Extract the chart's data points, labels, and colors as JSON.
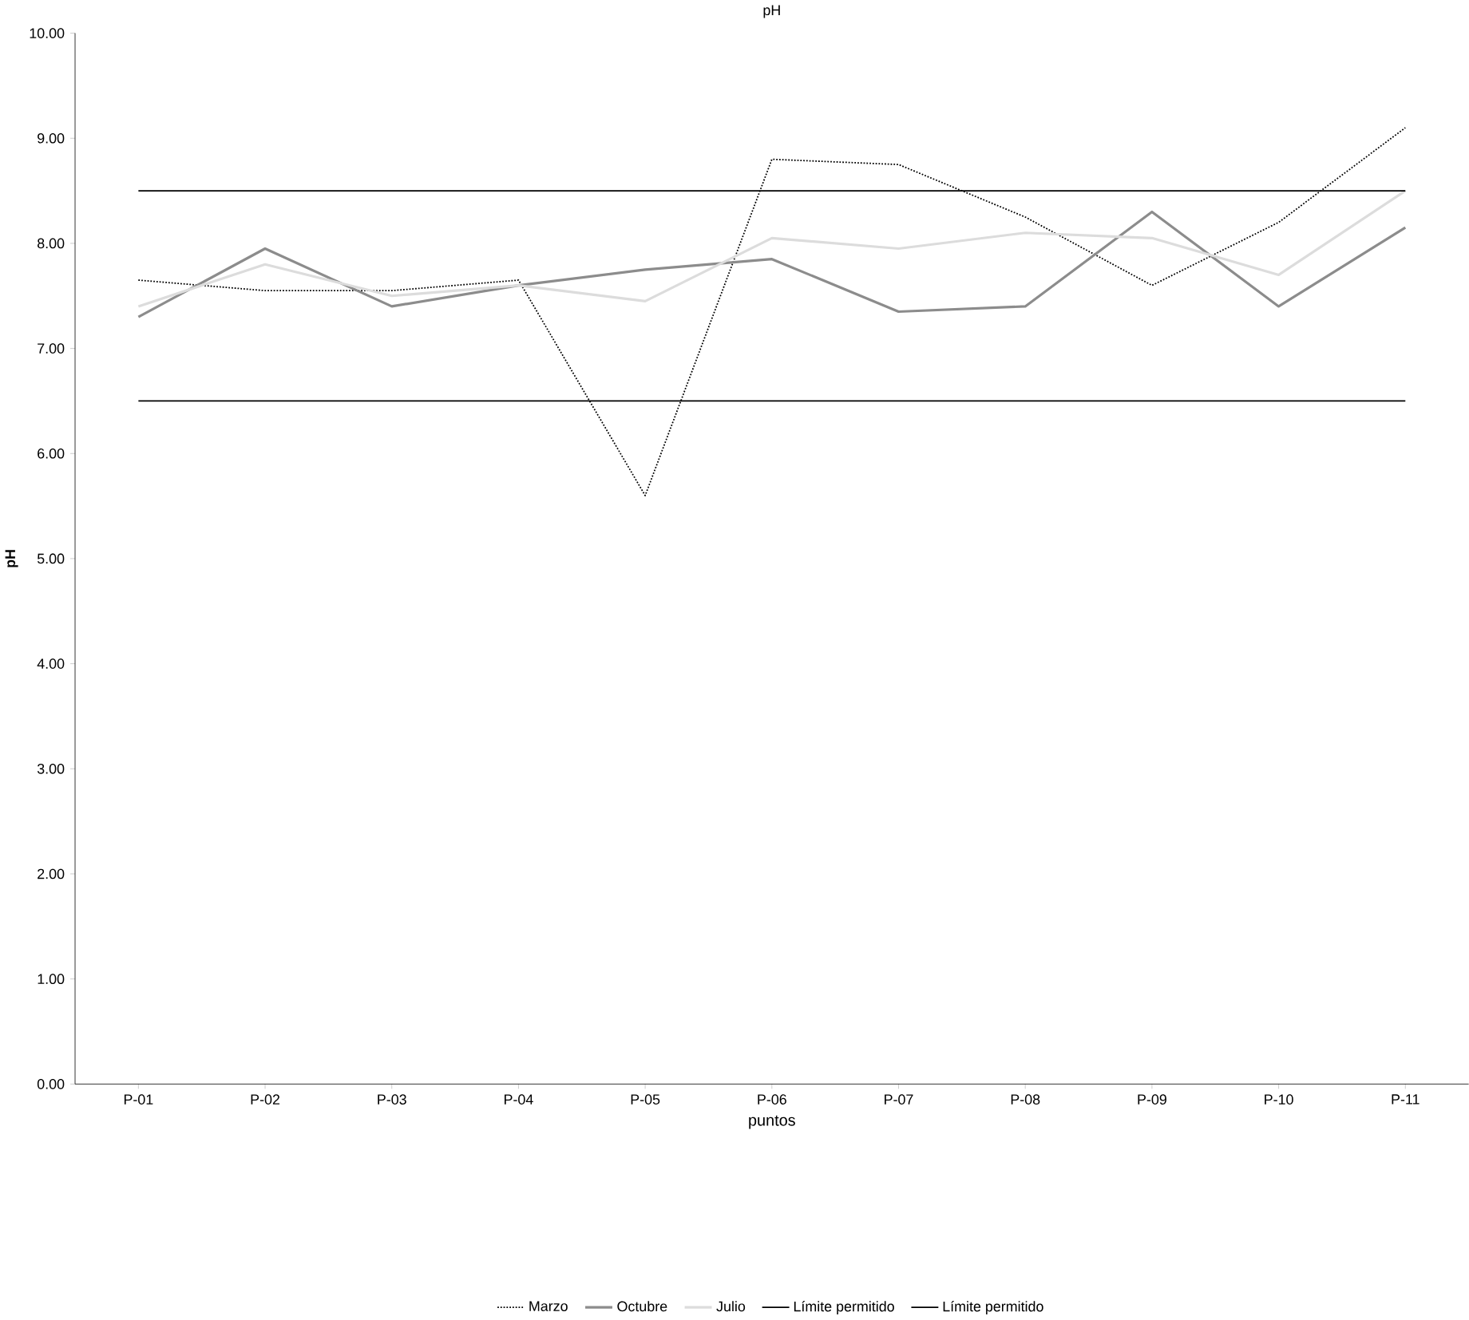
{
  "chart_data": {
    "type": "line",
    "title": "pH",
    "xlabel": "puntos",
    "ylabel": "pH",
    "categories": [
      "P-01",
      "P-02",
      "P-03",
      "P-04",
      "P-05",
      "P-06",
      "P-07",
      "P-08",
      "P-09",
      "P-10",
      "P-11"
    ],
    "series": [
      {
        "name": "Marzo",
        "color": "#000000",
        "line_style": "dotted",
        "values": [
          7.65,
          7.55,
          7.55,
          7.65,
          5.6,
          8.8,
          8.75,
          8.25,
          7.6,
          8.2,
          9.1
        ]
      },
      {
        "name": "Octubre",
        "color": "#8c8c8c",
        "values": [
          7.3,
          7.95,
          7.4,
          7.6,
          7.75,
          7.85,
          7.35,
          7.4,
          8.3,
          7.4,
          8.15
        ]
      },
      {
        "name": "Julio",
        "color": "#dcdcdc",
        "values": [
          7.4,
          7.8,
          7.5,
          7.6,
          7.45,
          8.05,
          7.95,
          8.1,
          8.05,
          7.7,
          8.5
        ]
      },
      {
        "name": "Límite permitido",
        "color": "#000000",
        "values": [
          8.5,
          8.5,
          8.5,
          8.5,
          8.5,
          8.5,
          8.5,
          8.5,
          8.5,
          8.5,
          8.5
        ]
      },
      {
        "name": "Límite permitido",
        "color": "#000000",
        "values": [
          6.5,
          6.5,
          6.5,
          6.5,
          6.5,
          6.5,
          6.5,
          6.5,
          6.5,
          6.5,
          6.5
        ]
      }
    ],
    "ylim": [
      0,
      10
    ],
    "yticks": [
      {
        "value": 0,
        "label": "0.00"
      },
      {
        "value": 1,
        "label": "1.00"
      },
      {
        "value": 2,
        "label": "2.00"
      },
      {
        "value": 3,
        "label": "3.00"
      },
      {
        "value": 4,
        "label": "4.00"
      },
      {
        "value": 5,
        "label": "5.00"
      },
      {
        "value": 6,
        "label": "6.00"
      },
      {
        "value": 7,
        "label": "7.00"
      },
      {
        "value": 8,
        "label": "8.00"
      },
      {
        "value": 9,
        "label": "9.00"
      },
      {
        "value": 10,
        "label": "10.00"
      }
    ],
    "grid": false,
    "legend": "bottom",
    "marker": "none",
    "line_style": "solid"
  }
}
